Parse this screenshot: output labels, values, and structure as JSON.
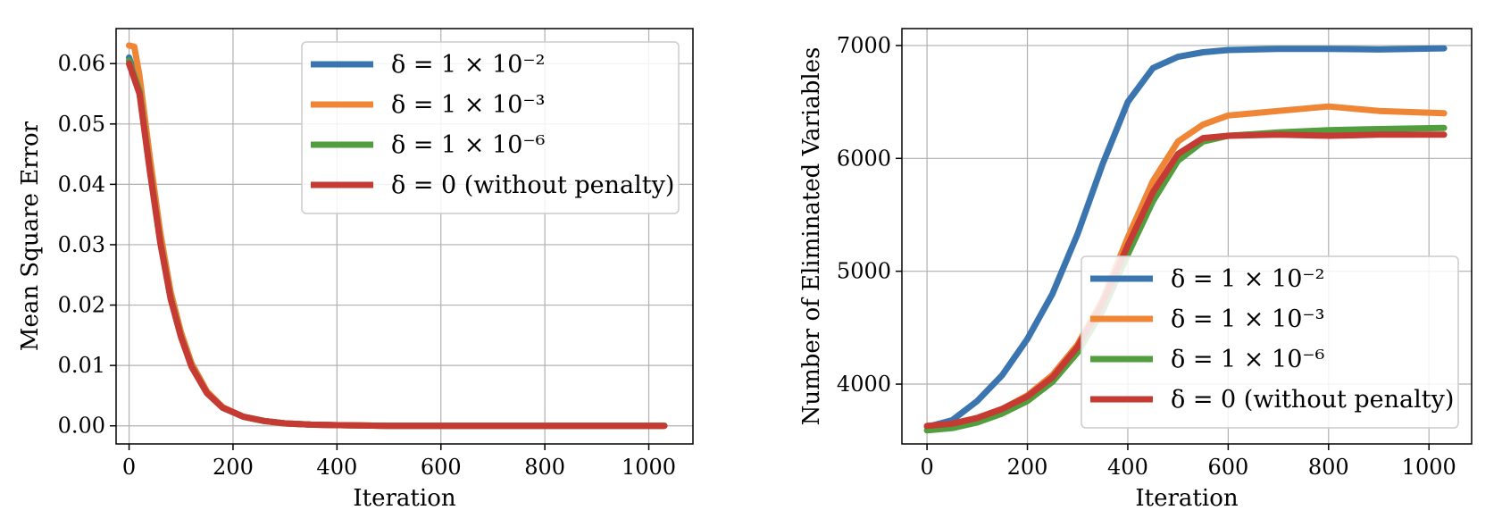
{
  "chart_data": [
    {
      "type": "line",
      "title": "",
      "xlabel": "Iteration",
      "ylabel": "Mean Square Error",
      "xlim": [
        -25,
        1085
      ],
      "ylim": [
        -0.003,
        0.0658
      ],
      "xticks": [
        0,
        200,
        400,
        600,
        800,
        1000
      ],
      "yticks": [
        0.0,
        0.01,
        0.02,
        0.03,
        0.04,
        0.05,
        0.06
      ],
      "ytick_labels": [
        "0.00",
        "0.01",
        "0.02",
        "0.03",
        "0.04",
        "0.05",
        "0.06"
      ],
      "grid": true,
      "legend_position": "top-right",
      "series": [
        {
          "name": "δ = 1 × 10⁻²",
          "color": "#3b75af",
          "x": [
            0,
            20,
            40,
            60,
            80,
            100,
            120,
            150,
            180,
            220,
            260,
            300,
            350,
            400,
            500,
            600,
            800,
            1030
          ],
          "y": [
            0.061,
            0.056,
            0.043,
            0.031,
            0.0215,
            0.015,
            0.01,
            0.0055,
            0.003,
            0.0015,
            0.0008,
            0.0004,
            0.0002,
            0.0001,
            0.0,
            0.0,
            0.0,
            0.0
          ]
        },
        {
          "name": "δ = 1 × 10⁻³",
          "color": "#ef8636",
          "x": [
            0,
            10,
            20,
            40,
            60,
            80,
            100,
            120,
            150,
            180,
            220,
            260,
            300,
            350,
            400,
            500,
            600,
            800,
            1030
          ],
          "y": [
            0.063,
            0.0628,
            0.058,
            0.0445,
            0.032,
            0.0222,
            0.0155,
            0.0104,
            0.0057,
            0.0031,
            0.0015,
            0.0008,
            0.0004,
            0.0002,
            0.0001,
            0.0,
            0.0,
            0.0,
            0.0
          ]
        },
        {
          "name": "δ = 1 × 10⁻⁶",
          "color": "#519e3e",
          "x": [
            0,
            20,
            40,
            60,
            80,
            100,
            120,
            150,
            180,
            220,
            260,
            300,
            350,
            400,
            500,
            600,
            800,
            1030
          ],
          "y": [
            0.0605,
            0.0555,
            0.0425,
            0.0305,
            0.0212,
            0.0148,
            0.0099,
            0.0054,
            0.003,
            0.0015,
            0.0008,
            0.0004,
            0.0002,
            0.0001,
            0.0,
            0.0,
            0.0,
            0.0
          ]
        },
        {
          "name": "δ = 0 (without penalty)",
          "color": "#c53a32",
          "x": [
            0,
            20,
            40,
            60,
            80,
            100,
            120,
            150,
            180,
            220,
            260,
            300,
            350,
            400,
            500,
            600,
            800,
            1030
          ],
          "y": [
            0.06,
            0.055,
            0.0422,
            0.0303,
            0.021,
            0.0147,
            0.0098,
            0.0054,
            0.003,
            0.0015,
            0.0008,
            0.0004,
            0.0002,
            0.0001,
            0.0,
            0.0,
            0.0,
            0.0
          ]
        }
      ]
    },
    {
      "type": "line",
      "title": "",
      "xlabel": "Iteration",
      "ylabel": "Number of Eliminated Variables",
      "xlim": [
        -50,
        1085
      ],
      "ylim": [
        3470,
        7150
      ],
      "xticks": [
        0,
        200,
        400,
        600,
        800,
        1000
      ],
      "yticks": [
        4000,
        5000,
        6000,
        7000
      ],
      "ytick_labels": [
        "4000",
        "5000",
        "6000",
        "7000"
      ],
      "grid": true,
      "legend_position": "bottom-right",
      "series": [
        {
          "name": "δ = 1 × 10⁻²",
          "color": "#3b75af",
          "x": [
            0,
            50,
            100,
            150,
            200,
            250,
            300,
            350,
            400,
            450,
            500,
            550,
            600,
            700,
            800,
            900,
            1030
          ],
          "y": [
            3620,
            3680,
            3850,
            4080,
            4400,
            4800,
            5330,
            5950,
            6500,
            6800,
            6900,
            6940,
            6960,
            6970,
            6970,
            6965,
            6975
          ]
        },
        {
          "name": "δ = 1 × 10⁻³",
          "color": "#ef8636",
          "x": [
            0,
            50,
            100,
            150,
            200,
            250,
            300,
            350,
            400,
            450,
            500,
            550,
            600,
            700,
            800,
            900,
            1030
          ],
          "y": [
            3620,
            3640,
            3700,
            3780,
            3900,
            4080,
            4350,
            4750,
            5300,
            5800,
            6150,
            6300,
            6380,
            6420,
            6460,
            6420,
            6400
          ]
        },
        {
          "name": "δ = 1 × 10⁻⁶",
          "color": "#519e3e",
          "x": [
            0,
            50,
            100,
            150,
            200,
            250,
            300,
            350,
            400,
            450,
            500,
            550,
            600,
            700,
            800,
            900,
            1030
          ],
          "y": [
            3590,
            3610,
            3660,
            3740,
            3850,
            4020,
            4280,
            4650,
            5150,
            5620,
            5980,
            6150,
            6200,
            6230,
            6250,
            6260,
            6270
          ]
        },
        {
          "name": "δ = 0 (without penalty)",
          "color": "#c53a32",
          "x": [
            0,
            50,
            100,
            150,
            200,
            250,
            300,
            350,
            400,
            450,
            500,
            550,
            600,
            700,
            800,
            900,
            1030
          ],
          "y": [
            3630,
            3650,
            3700,
            3780,
            3890,
            4060,
            4330,
            4720,
            5230,
            5700,
            6040,
            6180,
            6200,
            6210,
            6200,
            6210,
            6210
          ]
        }
      ]
    }
  ]
}
